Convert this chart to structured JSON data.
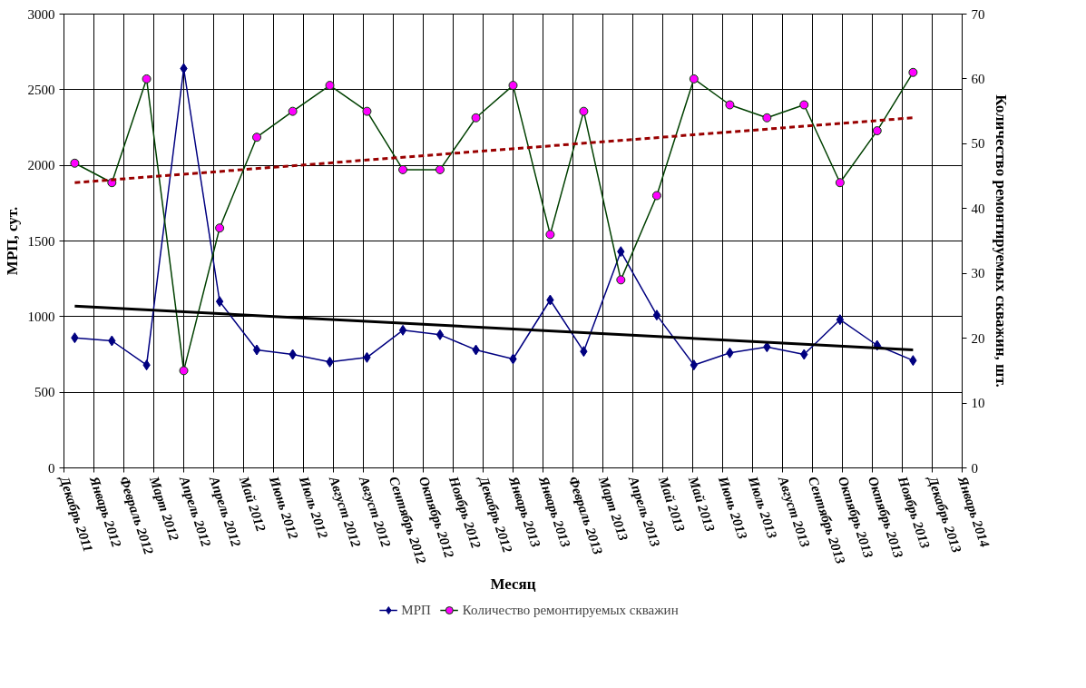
{
  "chart_data": {
    "type": "line",
    "xlabel": "Месяц",
    "ylabel": "МРП, сут.",
    "y2label": "Количество ремонтируемых скважин, шт.",
    "x": [
      "2012-01-01",
      "2012-02-01",
      "2012-03-01",
      "2012-04-01",
      "2012-05-01",
      "2012-06-01",
      "2012-07-01",
      "2012-08-01",
      "2012-09-01",
      "2012-10-01",
      "2012-11-01",
      "2012-12-01",
      "2013-01-01",
      "2013-02-01",
      "2013-03-01",
      "2013-04-01",
      "2013-05-01",
      "2013-06-01",
      "2013-07-01",
      "2013-08-01",
      "2013-09-01",
      "2013-10-01",
      "2013-11-01",
      "2013-12-01"
    ],
    "xlim": [
      "2011-12-23",
      "2014-01-11"
    ],
    "xticks": [
      {
        "value": "2011-12-23",
        "label": "Декабрь 2011"
      },
      {
        "value": "2012-01-17",
        "label": "Январь 2012"
      },
      {
        "value": "2012-02-11",
        "label": "Февраль 2012"
      },
      {
        "value": "2012-03-07",
        "label": "Март 2012"
      },
      {
        "value": "2012-04-01",
        "label": "Апрель 2012"
      },
      {
        "value": "2012-04-26",
        "label": "Апрель 2012"
      },
      {
        "value": "2012-05-21",
        "label": "Май 2012"
      },
      {
        "value": "2012-06-15",
        "label": "Июнь 2012"
      },
      {
        "value": "2012-07-10",
        "label": "Июль 2012"
      },
      {
        "value": "2012-08-04",
        "label": "Август 2012"
      },
      {
        "value": "2012-08-29",
        "label": "Август 2012"
      },
      {
        "value": "2012-09-23",
        "label": "Сентябрь 2012"
      },
      {
        "value": "2012-10-18",
        "label": "Октябрь 2012"
      },
      {
        "value": "2012-11-12",
        "label": "Ноябрь 2012"
      },
      {
        "value": "2012-12-07",
        "label": "Декабрь 2012"
      },
      {
        "value": "2013-01-01",
        "label": "Январь 2013"
      },
      {
        "value": "2013-01-26",
        "label": "Январь 2013"
      },
      {
        "value": "2013-02-20",
        "label": "Февраль 2013"
      },
      {
        "value": "2013-03-17",
        "label": "Март 2013"
      },
      {
        "value": "2013-04-11",
        "label": "Апрель 2013"
      },
      {
        "value": "2013-05-06",
        "label": "Май 2013"
      },
      {
        "value": "2013-05-31",
        "label": "Май 2013"
      },
      {
        "value": "2013-06-25",
        "label": "Июнь 2013"
      },
      {
        "value": "2013-07-20",
        "label": "Июль 2013"
      },
      {
        "value": "2013-08-14",
        "label": "Август 2013"
      },
      {
        "value": "2013-09-08",
        "label": "Сентябрь 2013"
      },
      {
        "value": "2013-10-03",
        "label": "Октябрь 2013"
      },
      {
        "value": "2013-10-28",
        "label": "Октябрь 2013"
      },
      {
        "value": "2013-11-22",
        "label": "Ноябрь 2013"
      },
      {
        "value": "2013-12-17",
        "label": "Декабрь 2013"
      },
      {
        "value": "2014-01-11",
        "label": "Январь 2014"
      }
    ],
    "ylim": [
      0,
      3000
    ],
    "yticks": [
      0,
      500,
      1000,
      1500,
      2000,
      2500,
      3000
    ],
    "y2lim": [
      0,
      70
    ],
    "y2ticks": [
      0,
      10,
      20,
      30,
      40,
      50,
      60,
      70
    ],
    "grid": true,
    "legend": "bottom",
    "series": [
      {
        "name": "МРП",
        "color": "#000080",
        "marker": "diamond",
        "values": [
          860,
          840,
          680,
          2640,
          1100,
          780,
          750,
          700,
          730,
          910,
          880,
          780,
          720,
          1110,
          770,
          1430,
          1010,
          680,
          760,
          800,
          750,
          980,
          810,
          710
        ]
      },
      {
        "name": "Количество ремонтируемых скважин",
        "color": "#004000",
        "colors": [
          "#ff00ff",
          "#ff00ff",
          "#ff00ff",
          "#ff00ff",
          "#ff00ff",
          "#ff00ff",
          "#ff00ff",
          "#ff00ff",
          "#ff00ff",
          "#ff00ff",
          "#ff00ff",
          "#ff00ff",
          "#ff00ff",
          "#ff00ff",
          "#ff00ff",
          "#ff00ff",
          "#ff00ff",
          "#ff00ff",
          "#ff00ff",
          "#ff00ff",
          "#ff00ff",
          "#ff00ff",
          "#ff00ff",
          "#ff00ff"
        ],
        "marker": "circle",
        "axis": "y2",
        "values": [
          47,
          44,
          60,
          15,
          37,
          51,
          55,
          59,
          55,
          46,
          46,
          54,
          59,
          36,
          55,
          29,
          42,
          60,
          56,
          54,
          56,
          44,
          52,
          61
        ]
      },
      {
        "color": "#000000",
        "marker": "none",
        "x": [
          "2012-01-01",
          "2013-12-01"
        ],
        "values": [
          1070,
          780
        ]
      },
      {
        "color": "#990000",
        "marker": "none",
        "line_style": "dashed",
        "axis": "y2",
        "x": [
          "2012-01-01",
          "2013-12-01"
        ],
        "values": [
          44,
          54
        ]
      }
    ]
  }
}
